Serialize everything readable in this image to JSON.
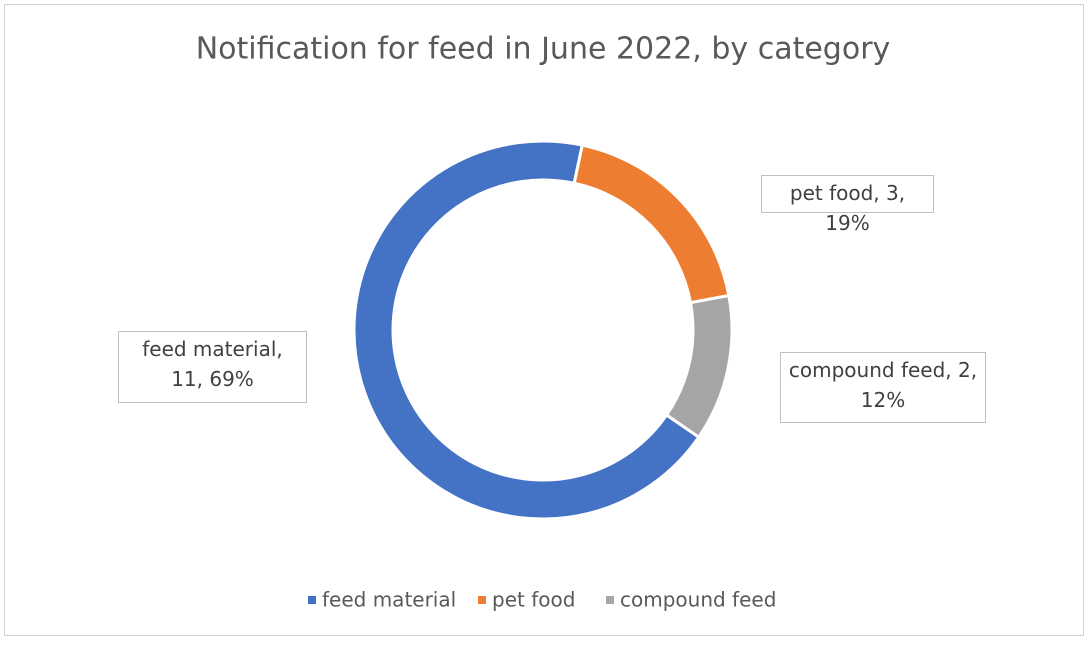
{
  "chart_data": {
    "type": "doughnut",
    "title": "Notification for feed in June 2022, by category",
    "categories": [
      "feed material",
      "pet food",
      "compound feed"
    ],
    "values": [
      11,
      3,
      2
    ],
    "value_labels": [
      "feed material, 11, 69%",
      "pet food, 3, 19%",
      "compound feed, 2, 12%"
    ],
    "colors": [
      "#4472c4",
      "#ed7d31",
      "#a5a5a5"
    ],
    "legend": "bottom"
  }
}
